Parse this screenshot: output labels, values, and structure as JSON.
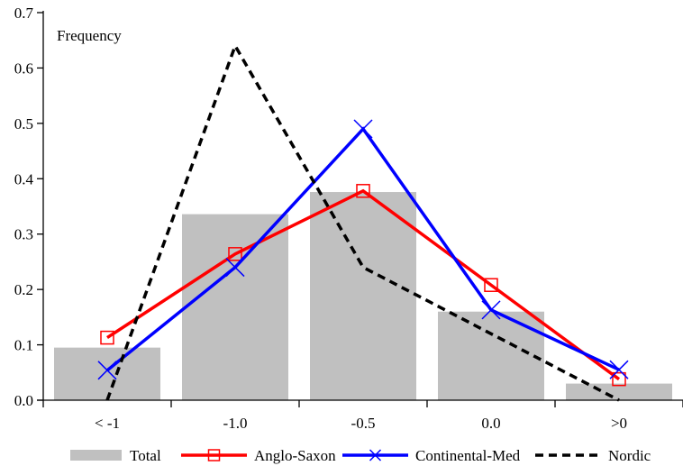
{
  "chart_data": {
    "type": "bar",
    "ylabel": "Frequency",
    "categories": [
      "< -1",
      "-1.0",
      "-0.5",
      "0.0",
      ">0"
    ],
    "ylim": [
      0,
      0.7
    ],
    "yticks": [
      "0.0",
      "0.1",
      "0.2",
      "0.3",
      "0.4",
      "0.5",
      "0.6",
      "0.7"
    ],
    "grid": false,
    "legend_position": "bottom",
    "series": [
      {
        "name": "Total",
        "kind": "bar",
        "color": "#c0c0c0",
        "values": [
          0.095,
          0.336,
          0.376,
          0.16,
          0.03
        ]
      },
      {
        "name": "Anglo-Saxon",
        "kind": "line",
        "marker": "square",
        "color": "#ff0000",
        "values": [
          0.113,
          0.264,
          0.378,
          0.208,
          0.038
        ]
      },
      {
        "name": "Continental-Med",
        "kind": "line",
        "marker": "x",
        "color": "#0000ff",
        "values": [
          0.054,
          0.24,
          0.49,
          0.163,
          0.055
        ]
      },
      {
        "name": "Nordic",
        "kind": "line",
        "marker": "none",
        "dash": true,
        "color": "#000000",
        "values": [
          0.0,
          0.64,
          0.24,
          0.12,
          0.0
        ]
      }
    ]
  }
}
